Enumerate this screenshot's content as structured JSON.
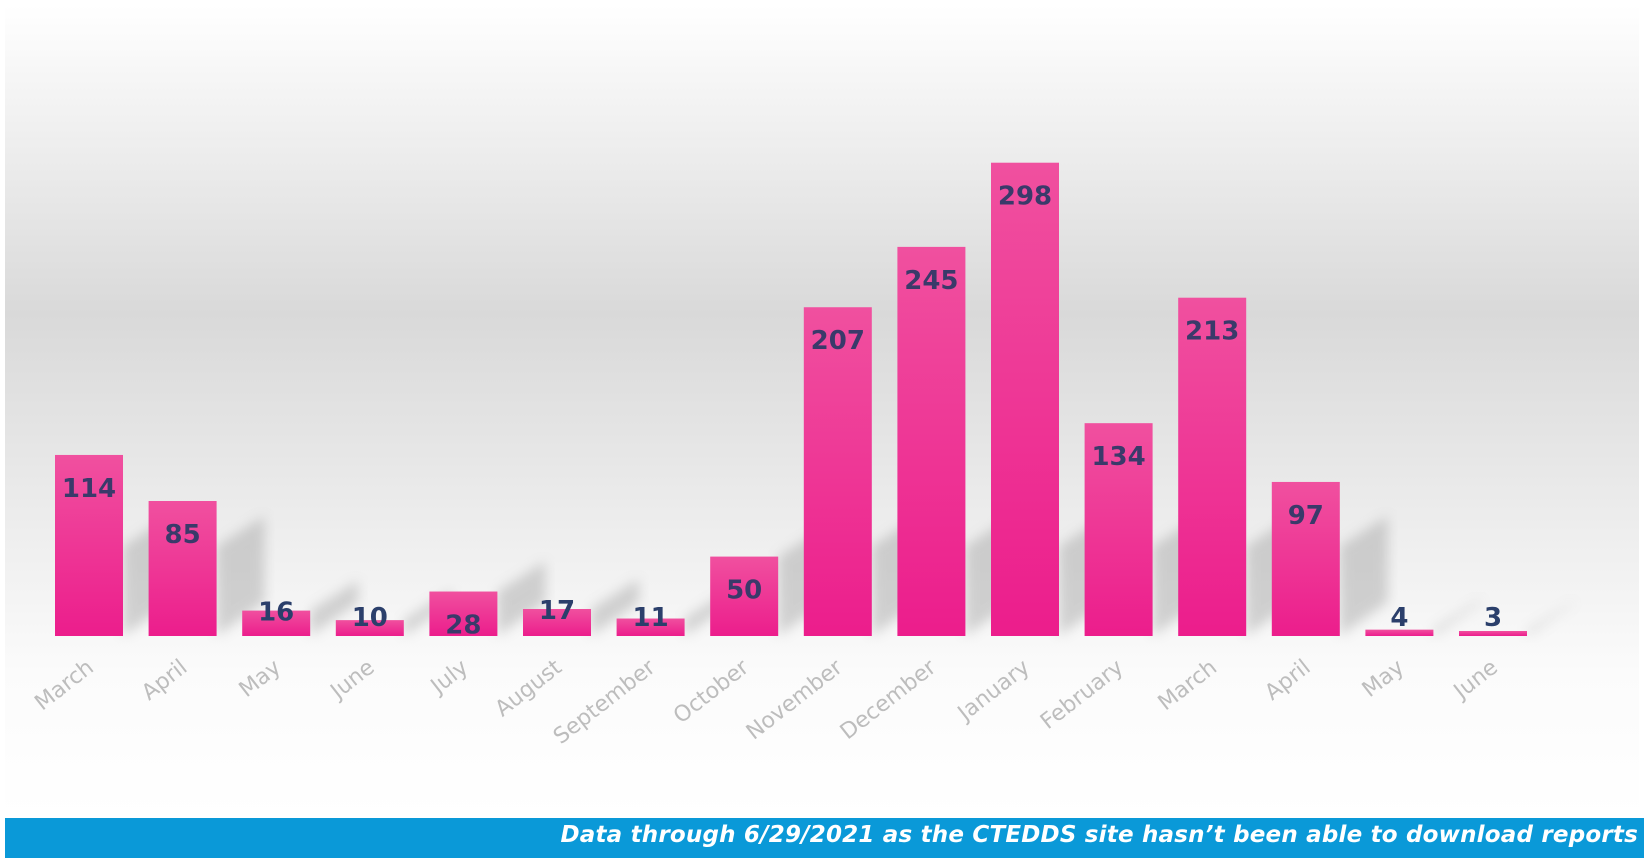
{
  "chart_data": {
    "type": "bar",
    "categories": [
      "March",
      "April",
      "May",
      "June",
      "July",
      "August",
      "September",
      "October",
      "November",
      "December",
      "January",
      "February",
      "March",
      "April",
      "May",
      "June"
    ],
    "values": [
      114,
      85,
      16,
      10,
      28,
      17,
      11,
      50,
      207,
      245,
      298,
      134,
      213,
      97,
      4,
      3
    ],
    "title": "",
    "xlabel": "",
    "ylabel": "",
    "ylim": [
      0,
      340
    ],
    "grid": false,
    "legend": "none",
    "data_labels": true
  },
  "footer": {
    "note": "Data through 6/29/2021 as the CTEDDS site hasn’t been able to download reports"
  },
  "colors": {
    "bar": "#ec1d8c",
    "bar_light": "#f0509f",
    "footer": "#0a99d8",
    "label": "#3a3a6a",
    "tick": "#bdbdbd"
  }
}
